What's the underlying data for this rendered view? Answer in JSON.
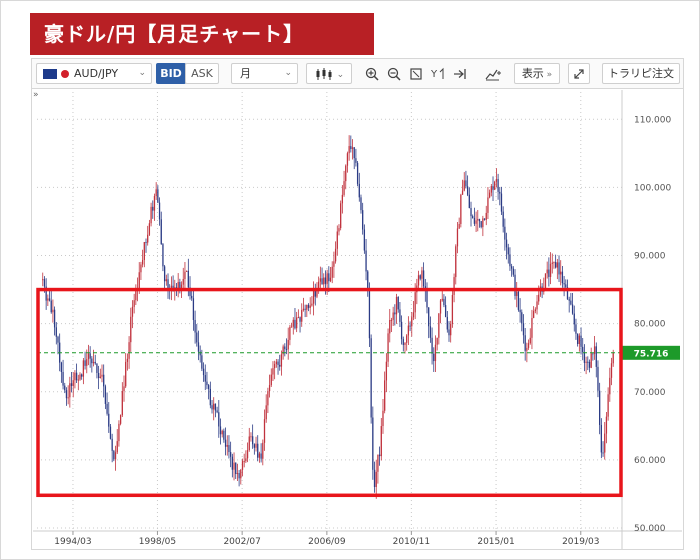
{
  "title": "豪ドル/円【月足チャート】",
  "toolbar": {
    "pair": "AUD/JPY",
    "bid": "BID",
    "ask": "ASK",
    "period": "月",
    "display": "表示",
    "order": "トラリピ注文"
  },
  "colors": {
    "banner": "#b82025",
    "up_candle": "#c0323d",
    "down_candle": "#2b3b85",
    "highlight_box": "#e8151b",
    "current_price_line": "#1d9a2a"
  },
  "chart_data": {
    "type": "candlestick",
    "title": "",
    "xlabel": "",
    "ylabel": "",
    "ylim": [
      50,
      114
    ],
    "y_ticks": [
      "110.000",
      "100.000",
      "90.000",
      "80.000",
      "70.000",
      "60.000",
      "50.000"
    ],
    "x_ticks": [
      "1994/03",
      "1998/05",
      "2002/07",
      "2006/09",
      "2010/11",
      "2015/01",
      "2019/03"
    ],
    "x_tick_years": [
      1994.17,
      1998.33,
      2002.5,
      2006.67,
      2010.83,
      2015.0,
      2019.17
    ],
    "x_range": [
      1992.4,
      2021.2
    ],
    "current_price": "75.716",
    "current_price_value": 75.716,
    "highlight_range": {
      "low": 54.8,
      "high": 85.0
    },
    "grid": true,
    "price_path": [
      [
        1992.6,
        86.5
      ],
      [
        1993.3,
        80
      ],
      [
        1993.8,
        69
      ],
      [
        1994.3,
        72
      ],
      [
        1995.0,
        75
      ],
      [
        1995.6,
        72
      ],
      [
        1996.2,
        59.5
      ],
      [
        1996.6,
        69
      ],
      [
        1997.0,
        80
      ],
      [
        1997.5,
        88
      ],
      [
        1998.0,
        96
      ],
      [
        1998.3,
        99.5
      ],
      [
        1998.7,
        86
      ],
      [
        1999.3,
        85
      ],
      [
        1999.8,
        87
      ],
      [
        2000.3,
        77
      ],
      [
        2000.8,
        70
      ],
      [
        2001.3,
        66
      ],
      [
        2001.8,
        61
      ],
      [
        2002.3,
        57
      ],
      [
        2002.9,
        63
      ],
      [
        2003.4,
        60
      ],
      [
        2003.8,
        71
      ],
      [
        2004.4,
        75
      ],
      [
        2004.9,
        79
      ],
      [
        2005.6,
        82
      ],
      [
        2006.3,
        86
      ],
      [
        2006.9,
        87
      ],
      [
        2007.4,
        98
      ],
      [
        2007.8,
        107
      ],
      [
        2008.2,
        101
      ],
      [
        2008.7,
        85
      ],
      [
        2008.95,
        55.5
      ],
      [
        2009.3,
        62
      ],
      [
        2009.7,
        79
      ],
      [
        2010.1,
        83
      ],
      [
        2010.5,
        76
      ],
      [
        2010.9,
        82
      ],
      [
        2011.3,
        88
      ],
      [
        2011.6,
        83
      ],
      [
        2011.9,
        73
      ],
      [
        2012.3,
        85
      ],
      [
        2012.7,
        78
      ],
      [
        2013.0,
        90
      ],
      [
        2013.4,
        102
      ],
      [
        2013.8,
        95
      ],
      [
        2014.3,
        95
      ],
      [
        2014.8,
        100
      ],
      [
        2015.0,
        102
      ],
      [
        2015.5,
        92
      ],
      [
        2016.0,
        84
      ],
      [
        2016.5,
        76
      ],
      [
        2017.0,
        84
      ],
      [
        2017.5,
        87
      ],
      [
        2018.0,
        89
      ],
      [
        2018.5,
        84
      ],
      [
        2019.0,
        78
      ],
      [
        2019.5,
        74
      ],
      [
        2019.9,
        76
      ],
      [
        2020.2,
        60
      ],
      [
        2020.6,
        72
      ],
      [
        2020.8,
        75.7
      ]
    ]
  }
}
